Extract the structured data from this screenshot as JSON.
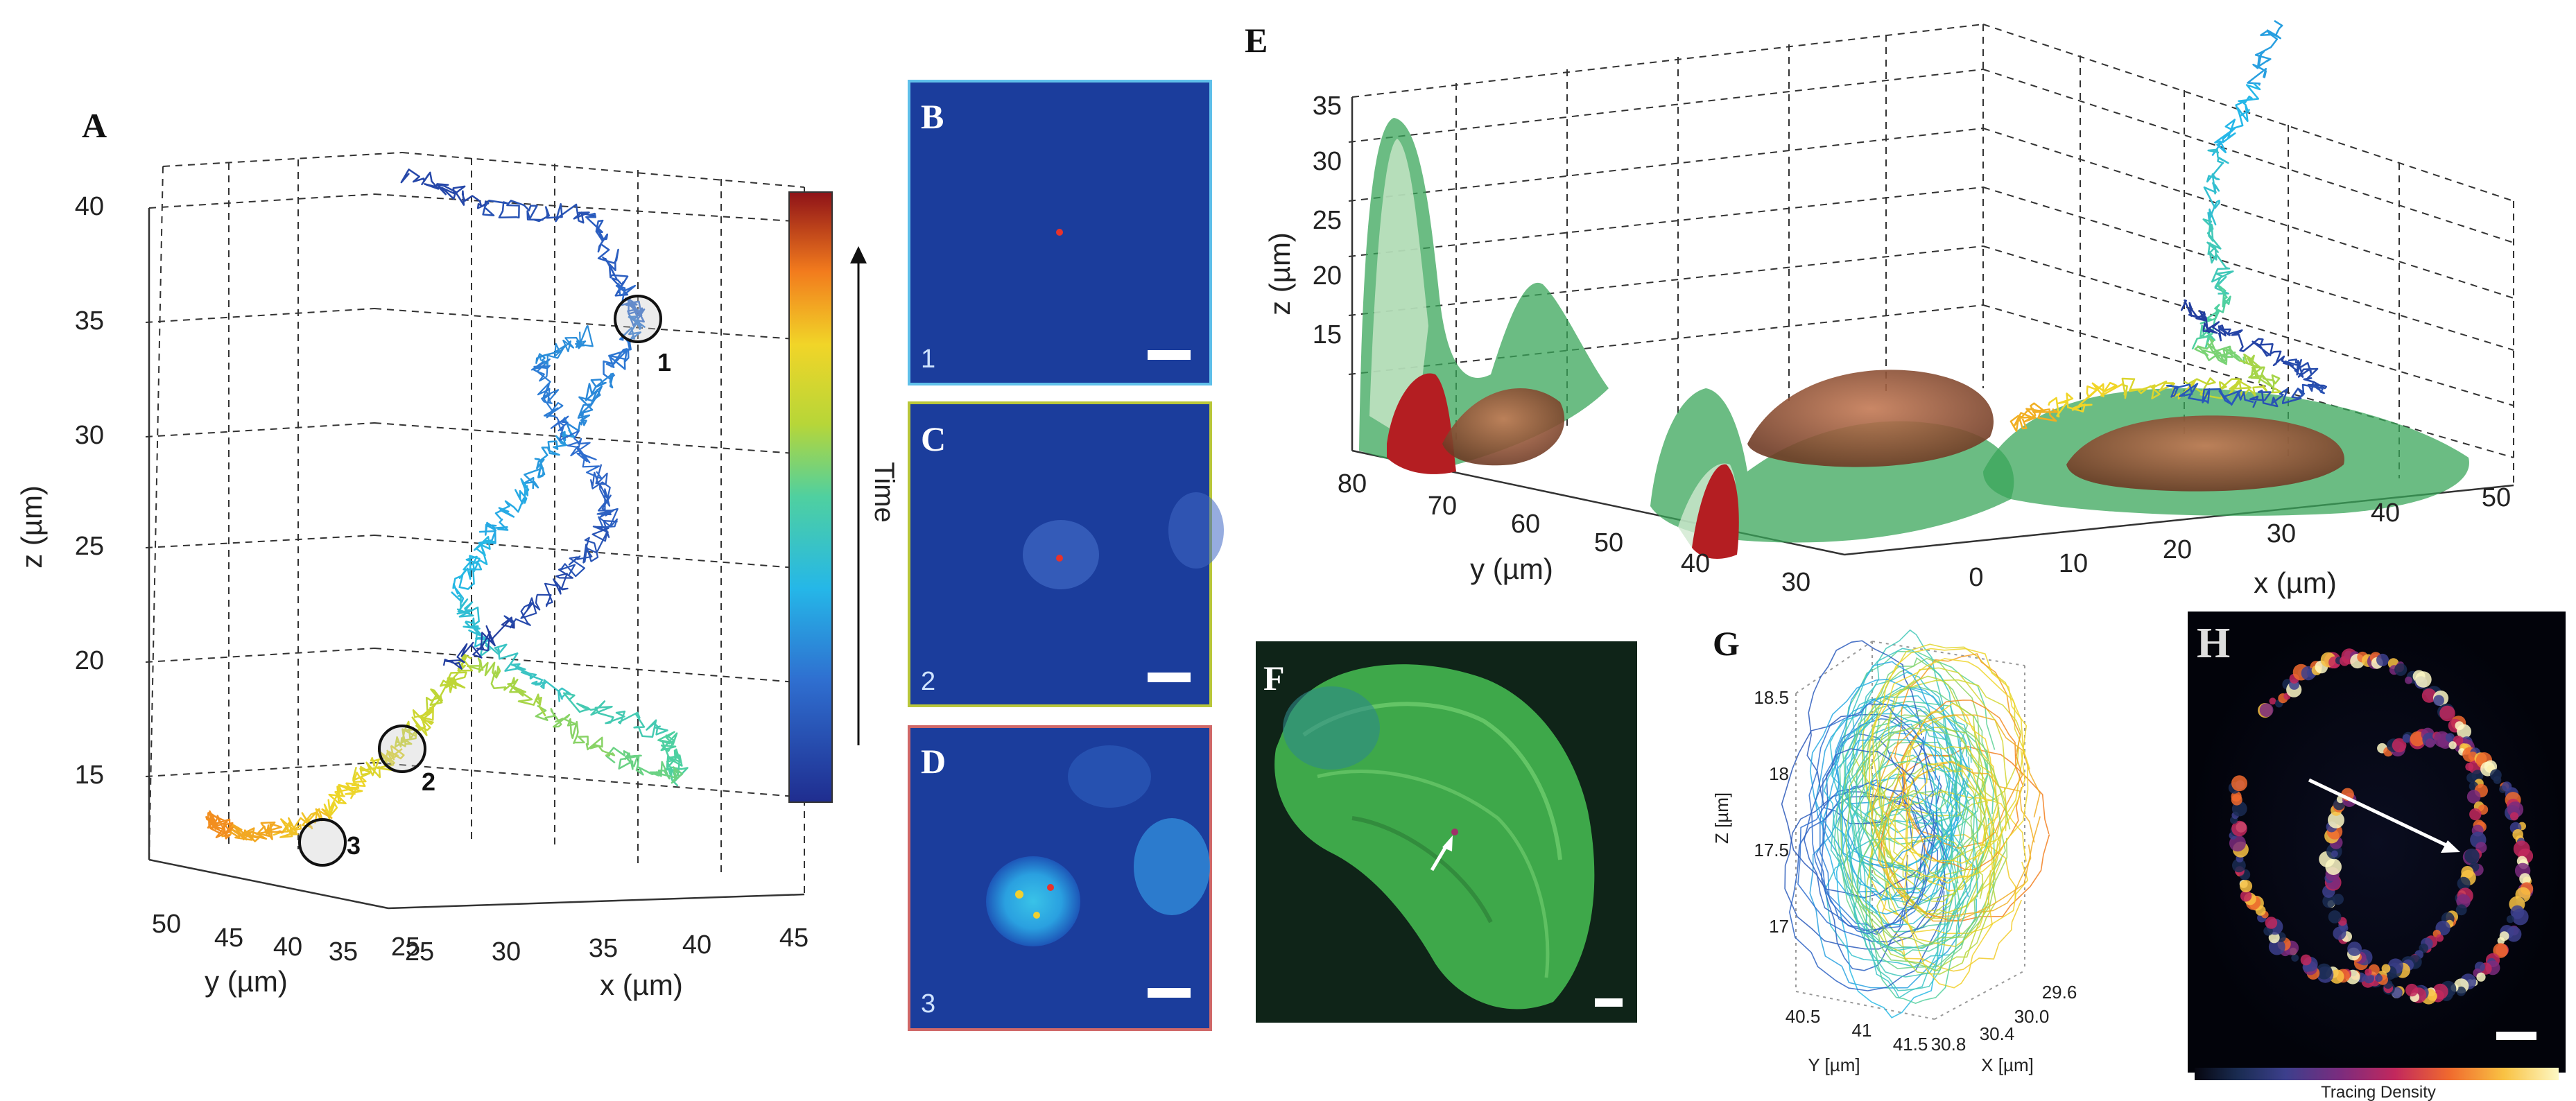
{
  "figure": {
    "panels": {
      "A": "A",
      "B": "B",
      "C": "C",
      "D": "D",
      "E": "E",
      "F": "F",
      "G": "G",
      "H": "H"
    },
    "panel_a": {
      "z_ticks": [
        "15",
        "20",
        "25",
        "30",
        "35",
        "40"
      ],
      "y_ticks": [
        "50",
        "45",
        "40",
        "35",
        "25"
      ],
      "x_ticks": [
        "25",
        "30",
        "35",
        "40",
        "45"
      ],
      "z_label": "z (µm)",
      "y_label": "y (µm)",
      "x_label": "x (µm)",
      "markers": [
        "1",
        "2",
        "3"
      ],
      "colorbar_label": "Time"
    },
    "panels_bcd": {
      "frame_labels": [
        "1",
        "2",
        "3"
      ],
      "frame_colors": [
        "#5fc0ea",
        "#b9c73a",
        "#d06868"
      ]
    },
    "panel_e": {
      "z_ticks": [
        "15",
        "20",
        "25",
        "30",
        "35"
      ],
      "y_ticks": [
        "80",
        "70",
        "60",
        "50",
        "40",
        "30"
      ],
      "x_ticks": [
        "0",
        "10",
        "20",
        "30",
        "40",
        "50"
      ],
      "z_label": "z (µm)",
      "y_label": "y (µm)",
      "x_label": "x (µm)"
    },
    "panel_g": {
      "z_ticks": [
        "18.5",
        "18",
        "17.5",
        "17"
      ],
      "y_ticks": [
        "40.5",
        "41",
        "41.5"
      ],
      "x_ticks": [
        "29.6",
        "30.0",
        "30.4",
        "30.8"
      ],
      "z_label": "Z [µm]",
      "y_label": "Y [µm]",
      "x_label": "X [µm]"
    },
    "panel_h": {
      "colorbar_label": "Tracing Density"
    },
    "colors": {
      "accent_red": "#e8322b",
      "cell_green": "#3aa65a",
      "frame_blue": "#1b3d9c"
    }
  }
}
